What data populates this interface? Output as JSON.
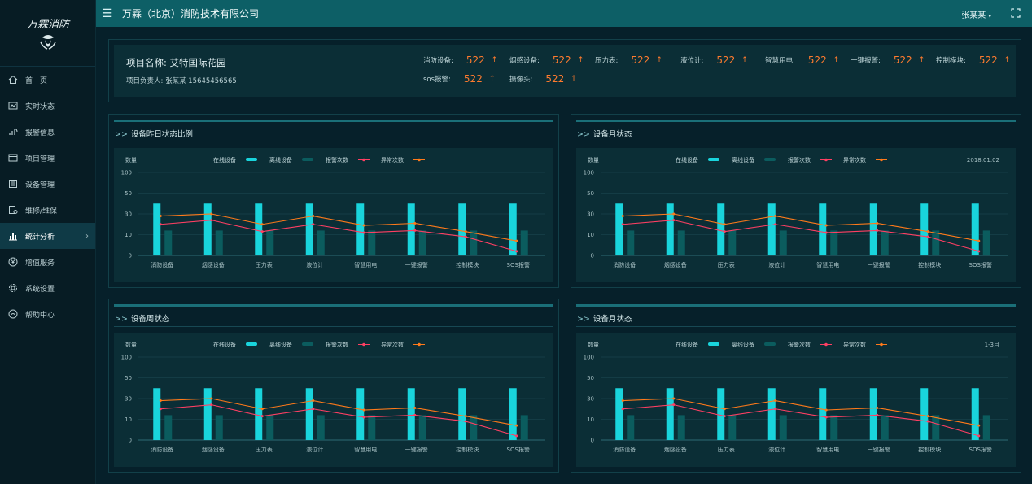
{
  "sidebar": {
    "logo_text": "万霖消防",
    "items": [
      {
        "label": "首　页",
        "icon": "home-icon"
      },
      {
        "label": "实时状态",
        "icon": "monitor-chart-icon"
      },
      {
        "label": "报警信息",
        "icon": "alarm-signal-icon"
      },
      {
        "label": "项目管理",
        "icon": "project-folder-icon"
      },
      {
        "label": "设备管理",
        "icon": "device-list-icon"
      },
      {
        "label": "维修/维保",
        "icon": "wrench-doc-icon"
      },
      {
        "label": "统计分析",
        "icon": "bar-chart-icon",
        "active": true
      },
      {
        "label": "增值服务",
        "icon": "yen-circle-icon"
      },
      {
        "label": "系统设置",
        "icon": "gear-icon"
      },
      {
        "label": "帮助中心",
        "icon": "help-circle-icon"
      }
    ]
  },
  "topbar": {
    "company": "万霖（北京）消防技术有限公司",
    "user": "张某某"
  },
  "project": {
    "name": "项目名称:  艾特国际花园",
    "owner": "项目负责人: 张某某   15645456565",
    "stats": [
      {
        "label": "消防设备:",
        "value": "522"
      },
      {
        "label": "烟感设备:",
        "value": "522"
      },
      {
        "label": "压力表:",
        "value": "522"
      },
      {
        "label": "液位计:",
        "value": "522"
      },
      {
        "label": "智慧用电:",
        "value": "522"
      },
      {
        "label": "一键报警:",
        "value": "522"
      },
      {
        "label": "控制模块:",
        "value": "522"
      },
      {
        "label": "sos报警:",
        "value": "522"
      },
      {
        "label": "摄像头:",
        "value": "522"
      }
    ],
    "arrow": "↑"
  },
  "colors": {
    "online": "#19d4dc",
    "offline": "#0b5c5e",
    "alarms": "#ff3f63",
    "abnormal": "#ff7a1a",
    "value_orange": "#ff7b2e"
  },
  "chart_legend": {
    "ylabel": "数量",
    "online": "在线设备",
    "offline": "离线设备",
    "alarms": "报警次数",
    "abnormal": "异常次数"
  },
  "charts": [
    {
      "title": "设备昨日状态比例",
      "date": ""
    },
    {
      "title": "设备月状态",
      "date": "2018.01.02"
    },
    {
      "title": "设备周状态",
      "date": ""
    },
    {
      "title": "设备月状态",
      "date": "1-3月"
    }
  ],
  "chart_data": {
    "type": "bar",
    "categories": [
      "消防设备",
      "烟感设备",
      "压力表",
      "液位计",
      "智慧用电",
      "一键报警",
      "控制模块",
      "SOS报警"
    ],
    "y_ticks": [
      "100",
      "50",
      "30",
      "10",
      "0"
    ],
    "series": [
      {
        "name": "在线设备",
        "type": "bar",
        "values": [
          40,
          40,
          40,
          40,
          40,
          40,
          40,
          40
        ]
      },
      {
        "name": "离线设备",
        "type": "bar",
        "values": [
          14,
          14,
          14,
          14,
          14,
          14,
          14,
          14
        ]
      },
      {
        "name": "报警次数",
        "type": "line",
        "values": [
          20,
          24,
          13,
          20,
          12,
          14,
          9,
          2
        ]
      },
      {
        "name": "异常次数",
        "type": "line",
        "values": [
          28,
          30,
          20,
          28,
          19,
          21,
          13,
          7
        ]
      }
    ],
    "ylabel": "数量",
    "grid": true,
    "legend_position": "top"
  }
}
